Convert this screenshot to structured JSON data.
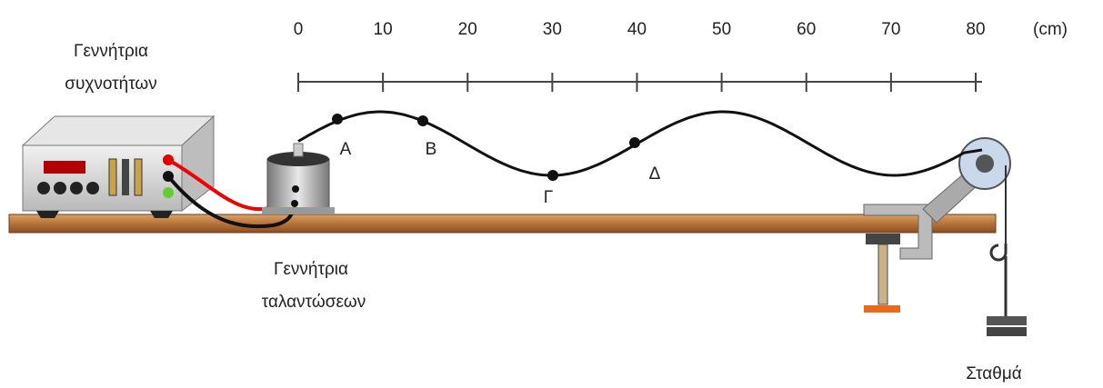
{
  "ruler": {
    "ticks": [
      0,
      10,
      20,
      30,
      40,
      50,
      60,
      70,
      80
    ],
    "unit": "(cm)"
  },
  "points": [
    "Α",
    "Β",
    "Γ",
    "Δ"
  ],
  "labels": {
    "frequency_generator": [
      "Γεννήτρια",
      "συχνοτήτων"
    ],
    "vibrator": [
      "Γεννήτρια",
      "ταλαντώσεων"
    ],
    "weights": "Σταθμά"
  }
}
